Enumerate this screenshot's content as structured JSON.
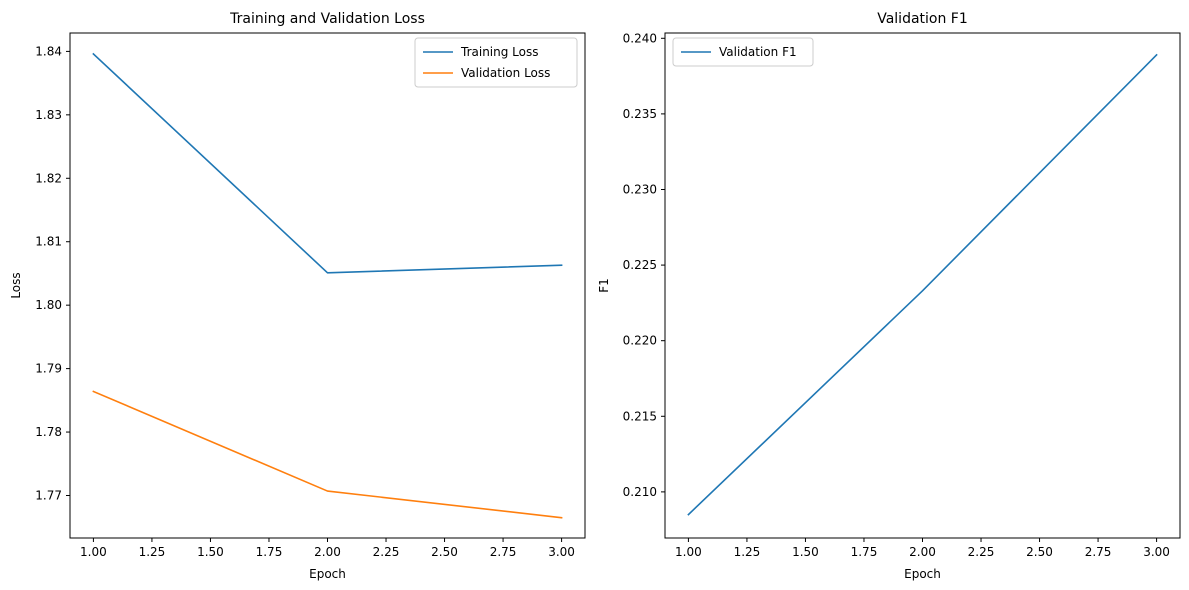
{
  "chart_data": [
    {
      "type": "line",
      "title": "Training and Validation Loss",
      "xlabel": "Epoch",
      "ylabel": "Loss",
      "xlim": [
        0.9,
        3.1
      ],
      "ylim": [
        1.7633,
        1.8429
      ],
      "xticks": [
        1.0,
        1.25,
        1.5,
        1.75,
        2.0,
        2.25,
        2.5,
        2.75,
        3.0
      ],
      "xtick_labels": [
        "1.00",
        "1.25",
        "1.50",
        "1.75",
        "2.00",
        "2.25",
        "2.50",
        "2.75",
        "3.00"
      ],
      "yticks": [
        1.77,
        1.78,
        1.79,
        1.8,
        1.81,
        1.82,
        1.83,
        1.84
      ],
      "ytick_labels": [
        "1.77",
        "1.78",
        "1.79",
        "1.80",
        "1.81",
        "1.82",
        "1.83",
        "1.84"
      ],
      "grid": false,
      "legend": "top-right",
      "x": [
        1,
        2,
        3
      ],
      "series": [
        {
          "name": "Training Loss",
          "color": "#1f77b4",
          "values": [
            1.8396,
            1.8051,
            1.8063
          ]
        },
        {
          "name": "Validation Loss",
          "color": "#ff7f0e",
          "values": [
            1.7864,
            1.7707,
            1.7665
          ]
        }
      ]
    },
    {
      "type": "line",
      "title": "Validation F1",
      "xlabel": "Epoch",
      "ylabel": "F1",
      "xlim": [
        0.9,
        3.1
      ],
      "ylim": [
        0.20695,
        0.24035
      ],
      "xticks": [
        1.0,
        1.25,
        1.5,
        1.75,
        2.0,
        2.25,
        2.5,
        2.75,
        3.0
      ],
      "xtick_labels": [
        "1.00",
        "1.25",
        "1.50",
        "1.75",
        "2.00",
        "2.25",
        "2.50",
        "2.75",
        "3.00"
      ],
      "yticks": [
        0.21,
        0.215,
        0.22,
        0.225,
        0.23,
        0.235,
        0.24
      ],
      "ytick_labels": [
        "0.210",
        "0.215",
        "0.220",
        "0.225",
        "0.230",
        "0.235",
        "0.240"
      ],
      "grid": false,
      "legend": "top-left",
      "x": [
        1,
        2,
        3
      ],
      "series": [
        {
          "name": "Validation F1",
          "color": "#1f77b4",
          "values": [
            0.2085,
            0.2233,
            0.2389
          ]
        }
      ]
    }
  ]
}
